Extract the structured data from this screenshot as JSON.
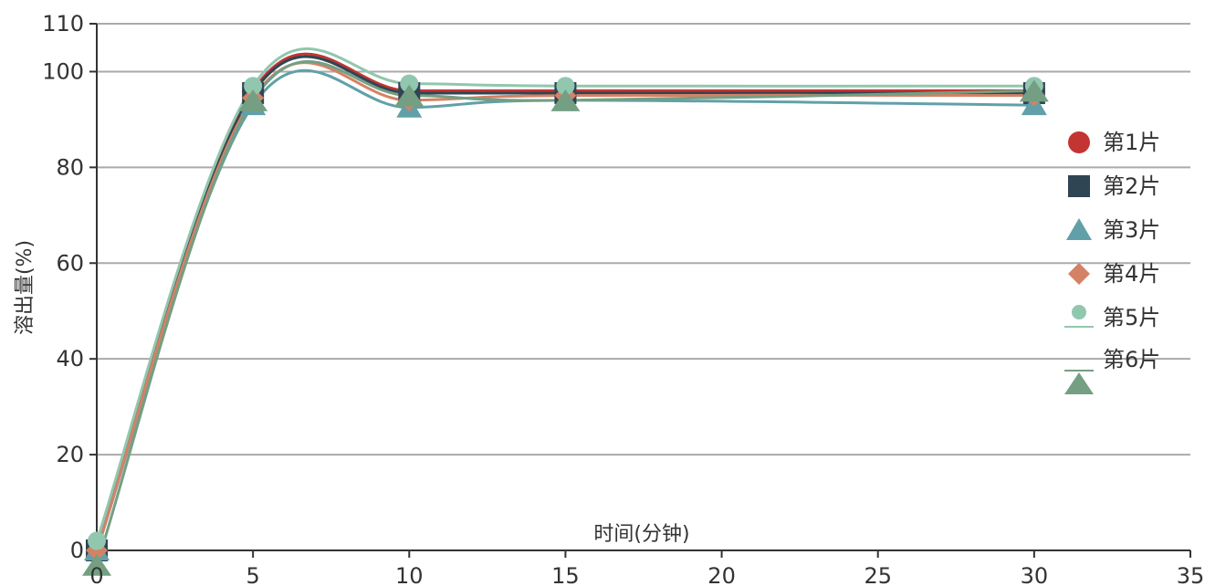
{
  "chart_data": {
    "type": "line",
    "title": "",
    "xlabel": "时间(分钟)",
    "ylabel": "溶出量(%)",
    "xlim": [
      0,
      35
    ],
    "ylim": [
      0,
      110
    ],
    "x_ticks": [
      0,
      5,
      10,
      15,
      20,
      25,
      30,
      35
    ],
    "y_ticks": [
      0,
      20,
      40,
      60,
      80,
      100,
      110
    ],
    "grid": true,
    "legend_position": "right",
    "x": [
      0,
      5,
      10,
      15,
      30
    ],
    "series": [
      {
        "name": "第1片",
        "marker": "circle",
        "color": "#c23531",
        "values": [
          0,
          96,
          96,
          96,
          96
        ]
      },
      {
        "name": "第2片",
        "marker": "square",
        "color": "#2f4554",
        "values": [
          0,
          95.5,
          95.5,
          95.5,
          95.5
        ]
      },
      {
        "name": "第3片",
        "marker": "triangle",
        "color": "#61a0a8",
        "values": [
          0,
          93,
          92.5,
          94,
          93
        ]
      },
      {
        "name": "第4片",
        "marker": "diamond",
        "color": "#d48265",
        "values": [
          0,
          94.5,
          94,
          95,
          95
        ]
      },
      {
        "name": "第5片",
        "marker": "circle-line",
        "color": "#91c7ae",
        "values": [
          2,
          97,
          97.5,
          97,
          97
        ]
      },
      {
        "name": "第6片",
        "marker": "triangle-line",
        "color": "#749f83",
        "values": [
          -3,
          94,
          95,
          94,
          96
        ]
      }
    ]
  }
}
